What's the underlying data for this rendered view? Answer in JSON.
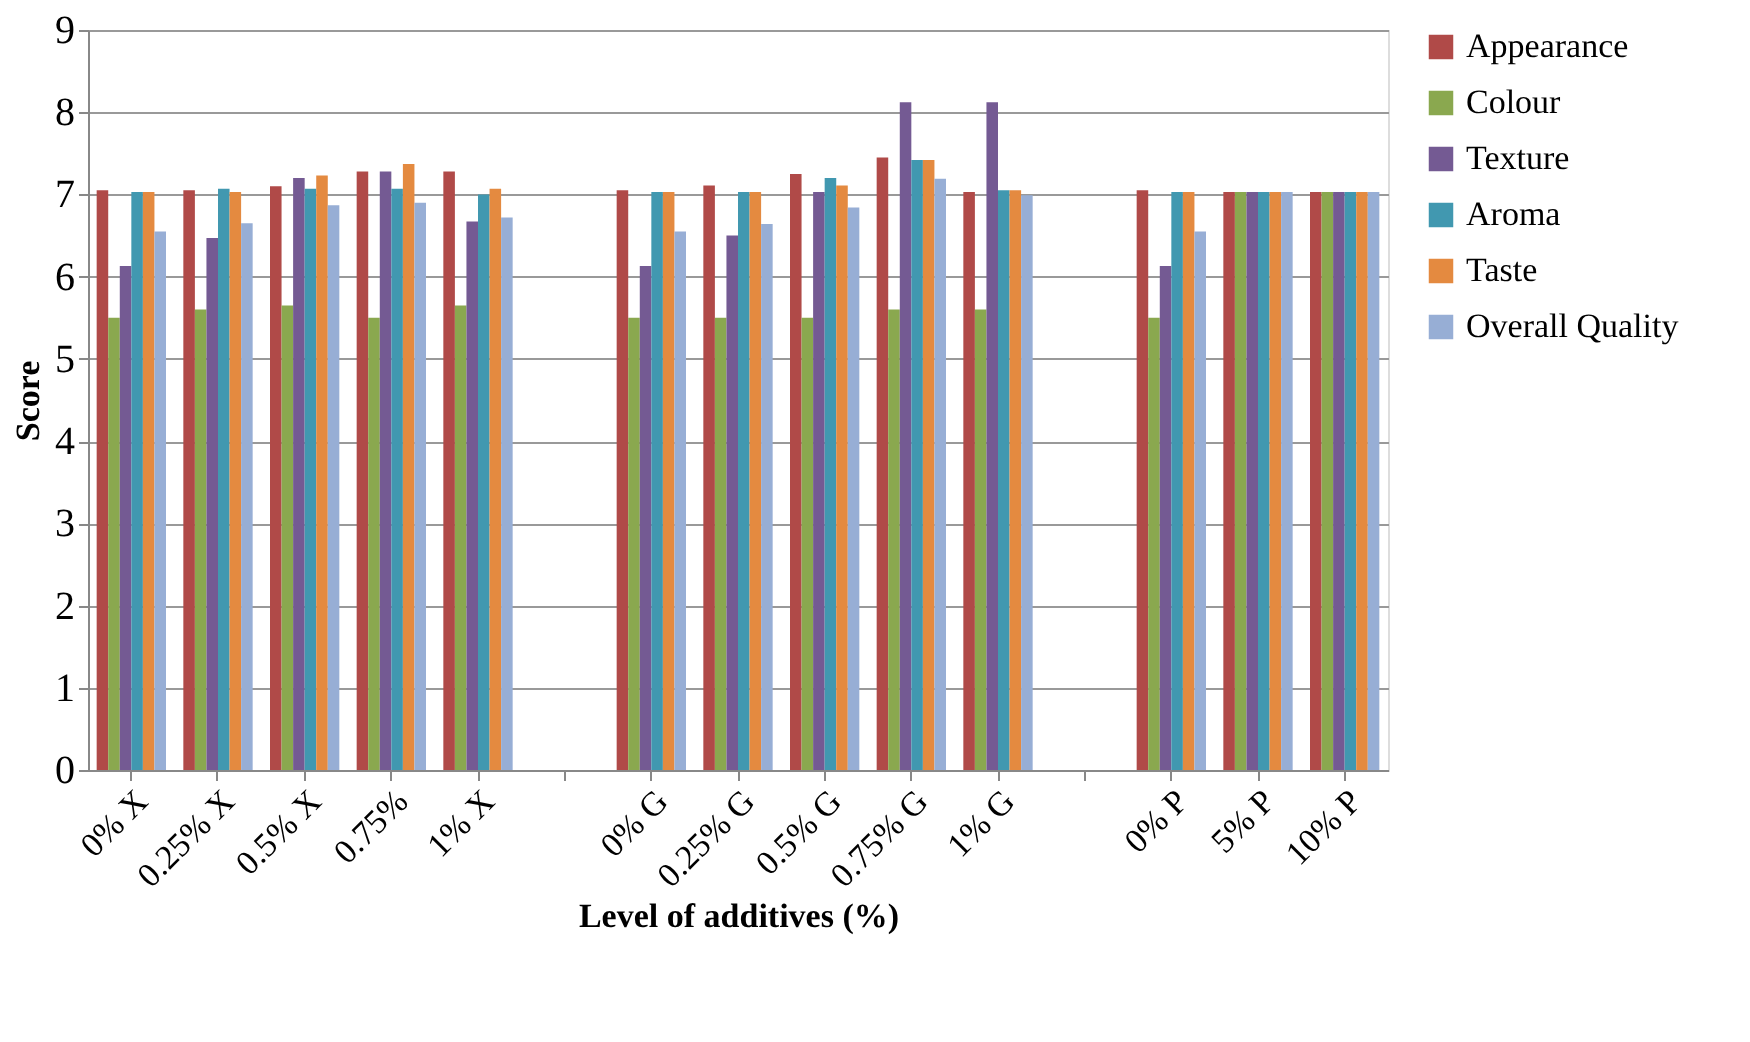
{
  "chart_data": {
    "type": "bar",
    "xlabel": "Level of additives (%)",
    "ylabel": "Score",
    "categories": [
      "0% X",
      "0.25% X",
      "0.5% X",
      "0.75%",
      "1% X",
      null,
      "0% G",
      "0.25% G",
      "0.5% G",
      "0.75% G",
      "1% G",
      null,
      "0% P",
      "5% P",
      "10% P"
    ],
    "series": [
      {
        "name": "Appearance",
        "color": "#b04a48",
        "values": [
          7.05,
          7.05,
          7.1,
          7.28,
          7.28,
          null,
          7.05,
          7.11,
          7.25,
          7.45,
          7.03,
          null,
          7.05,
          7.03,
          7.03
        ]
      },
      {
        "name": "Colour",
        "color": "#8aa84f",
        "values": [
          5.5,
          5.6,
          5.65,
          5.5,
          5.65,
          null,
          5.5,
          5.5,
          5.5,
          5.6,
          5.6,
          null,
          5.5,
          7.03,
          7.03
        ]
      },
      {
        "name": "Texture",
        "color": "#745a93",
        "values": [
          6.13,
          6.47,
          7.2,
          7.28,
          6.67,
          null,
          6.13,
          6.5,
          7.03,
          8.12,
          8.12,
          null,
          6.13,
          7.03,
          7.03
        ]
      },
      {
        "name": "Aroma",
        "color": "#4198b0",
        "values": [
          7.03,
          7.07,
          7.07,
          7.07,
          7.0,
          null,
          7.03,
          7.03,
          7.2,
          7.42,
          7.05,
          null,
          7.03,
          7.03,
          7.03
        ]
      },
      {
        "name": "Taste",
        "color": "#e48a40",
        "values": [
          7.03,
          7.03,
          7.23,
          7.37,
          7.07,
          null,
          7.03,
          7.03,
          7.11,
          7.42,
          7.05,
          null,
          7.03,
          7.03,
          7.03
        ]
      },
      {
        "name": "Overall Quality",
        "color": "#97aed5",
        "values": [
          6.55,
          6.65,
          6.87,
          6.9,
          6.72,
          null,
          6.55,
          6.64,
          6.84,
          7.19,
          6.99,
          null,
          6.55,
          7.03,
          7.03
        ]
      }
    ],
    "ylim": [
      0,
      9
    ],
    "yticks": [
      0,
      1,
      2,
      3,
      4,
      5,
      6,
      7,
      8,
      9
    ],
    "grid": "y",
    "legend": "right"
  }
}
